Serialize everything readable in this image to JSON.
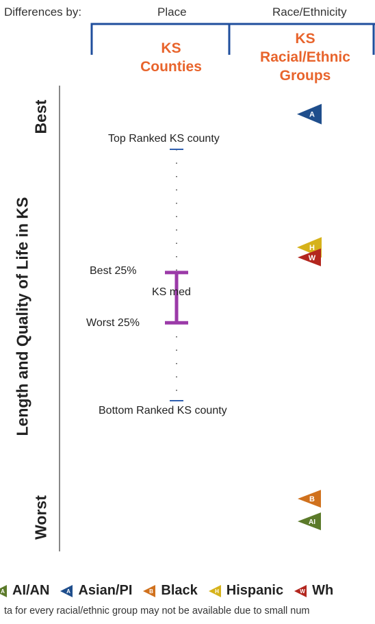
{
  "header": {
    "differences_by": "Differences by:",
    "place": "Place",
    "race_ethnicity": "Race/Ethnicity"
  },
  "columns": {
    "counties": "KS\nCounties",
    "groups": "KS\nRacial/Ethnic\nGroups"
  },
  "y_axis": {
    "title": "Length and Quality of Life in KS",
    "best": "Best",
    "worst": "Worst"
  },
  "county_range": {
    "top": "Top Ranked KS county",
    "best25": "Best 25%",
    "median": "KS med",
    "worst25": "Worst 25%",
    "bottom": "Bottom Ranked KS county"
  },
  "legend": [
    {
      "letter": "AI",
      "label": "AI/AN",
      "color": "#5b7a2a"
    },
    {
      "letter": "A",
      "label": "Asian/PI",
      "color": "#1f4e8c"
    },
    {
      "letter": "B",
      "label": "Black",
      "color": "#d0711d"
    },
    {
      "letter": "H",
      "label": "Hispanic",
      "color": "#d6b21a"
    },
    {
      "letter": "W",
      "label": "Wh",
      "color": "#b3261e"
    }
  ],
  "footnote": "ta for every racial/ethnic group may not be available due to small num",
  "colors": {
    "accent_orange": "#e8642c",
    "bracket_blue": "#1f4e9c",
    "range_purple": "#9b3aa8"
  },
  "chart_data": {
    "type": "scatter",
    "y_direction": "Best at top, Worst at bottom",
    "county_rank_range": {
      "top_ranked": 0.0,
      "best_25": 0.49,
      "median": 0.57,
      "worst_25": 0.69,
      "bottom_ranked": 1.0
    },
    "groups": [
      {
        "letter": "A",
        "name": "Asian/PI",
        "rank_position": -0.14
      },
      {
        "letter": "H",
        "name": "Hispanic",
        "rank_position": 0.39
      },
      {
        "letter": "W",
        "name": "White",
        "rank_position": 0.43
      },
      {
        "letter": "B",
        "name": "Black",
        "rank_position": 1.39
      },
      {
        "letter": "AI",
        "name": "AI/AN",
        "rank_position": 1.48
      }
    ]
  }
}
